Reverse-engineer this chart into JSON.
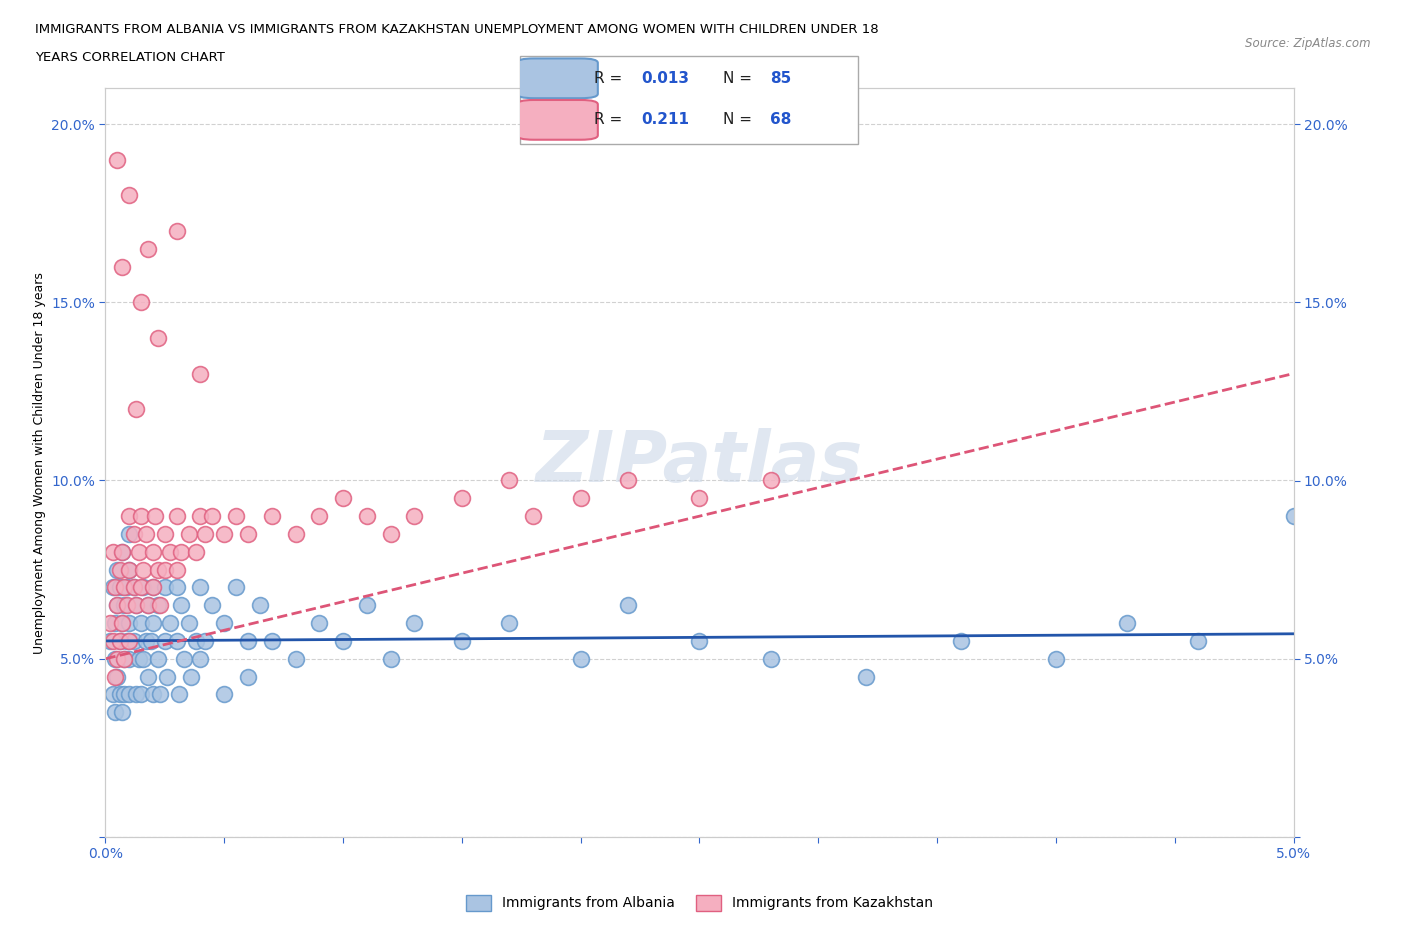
{
  "title_line1": "IMMIGRANTS FROM ALBANIA VS IMMIGRANTS FROM KAZAKHSTAN UNEMPLOYMENT AMONG WOMEN WITH CHILDREN UNDER 18",
  "title_line2": "YEARS CORRELATION CHART",
  "source_text": "Source: ZipAtlas.com",
  "ylabel": "Unemployment Among Women with Children Under 18 years",
  "xlim": [
    0.0,
    0.05
  ],
  "ylim": [
    0.0,
    0.21
  ],
  "ytick_vals": [
    0.0,
    0.05,
    0.1,
    0.15,
    0.2
  ],
  "ytick_labels": [
    "",
    "5.0%",
    "10.0%",
    "15.0%",
    "20.0%"
  ],
  "xtick_vals": [
    0.0,
    0.005,
    0.01,
    0.015,
    0.02,
    0.025,
    0.03,
    0.035,
    0.04,
    0.045,
    0.05
  ],
  "xtick_labels": [
    "0.0%",
    "",
    "",
    "",
    "",
    "",
    "",
    "",
    "",
    "",
    "5.0%"
  ],
  "albania_color": "#aac4e2",
  "kazakhstan_color": "#f5afc0",
  "albania_edge_color": "#6699cc",
  "kazakhstan_edge_color": "#e06080",
  "trend_albania_color": "#2255aa",
  "trend_kazakhstan_color": "#dd5577",
  "legend_R_albania": "0.013",
  "legend_N_albania": "85",
  "legend_R_kazakhstan": "0.211",
  "legend_N_kazakhstan": "68",
  "watermark": "ZIPatlas",
  "grid_color": "#cccccc",
  "albania_x": [
    0.0002,
    0.0003,
    0.0003,
    0.0004,
    0.0004,
    0.0004,
    0.0005,
    0.0005,
    0.0005,
    0.0006,
    0.0006,
    0.0006,
    0.0007,
    0.0007,
    0.0007,
    0.0008,
    0.0008,
    0.0008,
    0.0009,
    0.0009,
    0.001,
    0.001,
    0.001,
    0.001,
    0.001,
    0.0012,
    0.0012,
    0.0013,
    0.0013,
    0.0014,
    0.0015,
    0.0015,
    0.0016,
    0.0016,
    0.0017,
    0.0018,
    0.0018,
    0.0019,
    0.002,
    0.002,
    0.002,
    0.0022,
    0.0022,
    0.0023,
    0.0025,
    0.0025,
    0.0026,
    0.0027,
    0.003,
    0.003,
    0.0031,
    0.0032,
    0.0033,
    0.0035,
    0.0036,
    0.0038,
    0.004,
    0.004,
    0.0042,
    0.0045,
    0.005,
    0.005,
    0.0055,
    0.006,
    0.006,
    0.0065,
    0.007,
    0.008,
    0.009,
    0.01,
    0.011,
    0.012,
    0.013,
    0.015,
    0.017,
    0.02,
    0.022,
    0.025,
    0.028,
    0.032,
    0.036,
    0.04,
    0.043,
    0.046,
    0.05
  ],
  "albania_y": [
    0.055,
    0.07,
    0.04,
    0.06,
    0.05,
    0.035,
    0.065,
    0.045,
    0.075,
    0.055,
    0.04,
    0.07,
    0.06,
    0.035,
    0.08,
    0.05,
    0.065,
    0.04,
    0.055,
    0.07,
    0.06,
    0.04,
    0.075,
    0.05,
    0.085,
    0.055,
    0.07,
    0.04,
    0.065,
    0.05,
    0.06,
    0.04,
    0.07,
    0.05,
    0.055,
    0.045,
    0.065,
    0.055,
    0.06,
    0.04,
    0.07,
    0.05,
    0.065,
    0.04,
    0.055,
    0.07,
    0.045,
    0.06,
    0.055,
    0.07,
    0.04,
    0.065,
    0.05,
    0.06,
    0.045,
    0.055,
    0.07,
    0.05,
    0.055,
    0.065,
    0.06,
    0.04,
    0.07,
    0.055,
    0.045,
    0.065,
    0.055,
    0.05,
    0.06,
    0.055,
    0.065,
    0.05,
    0.06,
    0.055,
    0.06,
    0.05,
    0.065,
    0.055,
    0.05,
    0.045,
    0.055,
    0.05,
    0.06,
    0.055,
    0.09
  ],
  "kazakhstan_x": [
    0.0002,
    0.0003,
    0.0003,
    0.0004,
    0.0004,
    0.0005,
    0.0005,
    0.0006,
    0.0006,
    0.0007,
    0.0007,
    0.0008,
    0.0008,
    0.0009,
    0.001,
    0.001,
    0.001,
    0.0012,
    0.0012,
    0.0013,
    0.0014,
    0.0015,
    0.0015,
    0.0016,
    0.0017,
    0.0018,
    0.002,
    0.002,
    0.0021,
    0.0022,
    0.0023,
    0.0025,
    0.0025,
    0.0027,
    0.003,
    0.003,
    0.0032,
    0.0035,
    0.0038,
    0.004,
    0.0042,
    0.0045,
    0.005,
    0.0055,
    0.006,
    0.007,
    0.008,
    0.009,
    0.01,
    0.011,
    0.012,
    0.013,
    0.015,
    0.017,
    0.018,
    0.02,
    0.022,
    0.025,
    0.028,
    0.003,
    0.0022,
    0.0015,
    0.004,
    0.0005,
    0.0007,
    0.001,
    0.0013,
    0.0018
  ],
  "kazakhstan_y": [
    0.06,
    0.08,
    0.055,
    0.07,
    0.045,
    0.065,
    0.05,
    0.075,
    0.055,
    0.06,
    0.08,
    0.05,
    0.07,
    0.065,
    0.075,
    0.055,
    0.09,
    0.07,
    0.085,
    0.065,
    0.08,
    0.07,
    0.09,
    0.075,
    0.085,
    0.065,
    0.08,
    0.07,
    0.09,
    0.075,
    0.065,
    0.085,
    0.075,
    0.08,
    0.09,
    0.075,
    0.08,
    0.085,
    0.08,
    0.09,
    0.085,
    0.09,
    0.085,
    0.09,
    0.085,
    0.09,
    0.085,
    0.09,
    0.095,
    0.09,
    0.085,
    0.09,
    0.095,
    0.1,
    0.09,
    0.095,
    0.1,
    0.095,
    0.1,
    0.17,
    0.14,
    0.15,
    0.13,
    0.19,
    0.16,
    0.18,
    0.12,
    0.165
  ],
  "albania_trend_y0": 0.055,
  "albania_trend_y1": 0.057,
  "kazakhstan_trend_y0": 0.05,
  "kazakhstan_trend_y1": 0.13
}
